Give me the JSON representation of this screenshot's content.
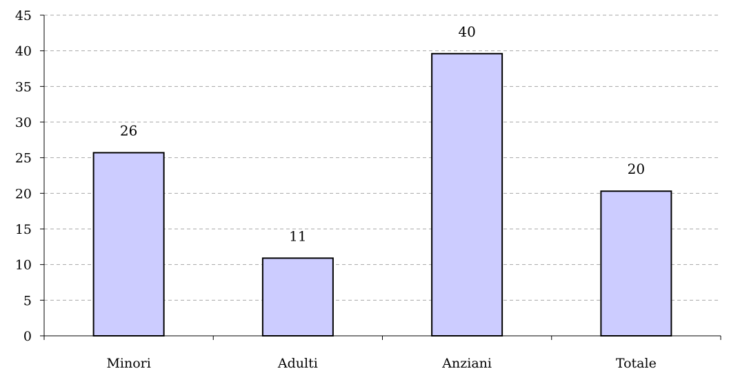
{
  "chart_data": {
    "type": "bar",
    "categories": [
      "Minori",
      "Adulti",
      "Anziani",
      "Totale"
    ],
    "values": [
      25.7,
      10.9,
      39.6,
      20.3
    ],
    "data_labels": [
      "26",
      "11",
      "40",
      "20"
    ],
    "ylim": [
      0,
      45
    ],
    "yticks": [
      "0",
      "5",
      "10",
      "15",
      "20",
      "25",
      "30",
      "35",
      "40",
      "45"
    ],
    "title": "",
    "xlabel": "",
    "ylabel": "",
    "grid": true,
    "legend": "none",
    "bar_color": "#ccccff",
    "bar_edge_color": "#000000",
    "grid_color": "#a6a6a6"
  }
}
